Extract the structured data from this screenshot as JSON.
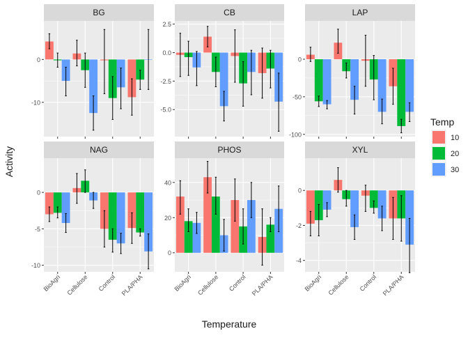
{
  "colors": {
    "10": "#F8766D",
    "20": "#00BA38",
    "30": "#619CFF",
    "panel_bg": "#EBEBEB",
    "strip_bg": "#D9D9D9",
    "grid": "#FFFFFF",
    "text": "#4D4D4D",
    "title_text": "#1A1A1A"
  },
  "chart_data": {
    "type": "bar",
    "facet_layout": "2 rows x 3 columns, free y scales",
    "categories": [
      "BioAgri",
      "Cellulose",
      "Control",
      "PLA/PHA"
    ],
    "xlabel": "Temperature",
    "ylabel": "Activity",
    "legend": {
      "title": "Temp",
      "position": "right",
      "entries": [
        "10",
        "20",
        "30"
      ]
    },
    "grid": true,
    "panels": [
      {
        "title": "BG",
        "ylim": [
          -18.0,
          9.0
        ],
        "yticks": [
          0,
          -10
        ],
        "ytick_labels": [
          "0",
          "-10"
        ],
        "series": [
          {
            "name": "10",
            "values": [
              4.2,
              1.4,
              -0.2,
              -8.8
            ],
            "err_low": [
              2.5,
              -1.5,
              -8.0,
              -13.0
            ],
            "err_high": [
              6.0,
              4.5,
              7.0,
              -4.5
            ]
          },
          {
            "name": "20",
            "values": [
              -0.2,
              -2.5,
              -9.0,
              -4.7
            ],
            "err_low": [
              -1.8,
              -6.5,
              -14.0,
              -7.0
            ],
            "err_high": [
              1.5,
              1.5,
              -4.0,
              -2.5
            ]
          },
          {
            "name": "30",
            "values": [
              -5.0,
              -12.5,
              -6.5,
              -0.1
            ],
            "err_low": [
              -8.5,
              -16.5,
              -11.5,
              -7.0
            ],
            "err_high": [
              -1.8,
              -8.5,
              -2.0,
              7.0
            ]
          }
        ]
      },
      {
        "title": "CB",
        "ylim": [
          -7.37,
          2.78
        ],
        "yticks": [
          2.5,
          0.0,
          -2.5,
          -5.0
        ],
        "ytick_labels": [
          "2.5",
          "0.0",
          "-2.5",
          "-5.0"
        ],
        "series": [
          {
            "name": "10",
            "values": [
              -0.2,
              1.4,
              -0.3,
              -1.8
            ],
            "err_low": [
              -2.1,
              0.5,
              -2.6,
              -4.0
            ],
            "err_high": [
              1.7,
              2.3,
              2.0,
              0.4
            ]
          },
          {
            "name": "20",
            "values": [
              -0.4,
              -1.7,
              -2.7,
              -1.4
            ],
            "err_low": [
              -2.0,
              -3.0,
              -4.7,
              -3.1
            ],
            "err_high": [
              1.0,
              -0.4,
              -0.8,
              0.2
            ]
          },
          {
            "name": "30",
            "values": [
              -1.3,
              -4.7,
              -1.7,
              -4.3
            ],
            "err_low": [
              -2.9,
              -6.0,
              -3.7,
              -6.9
            ],
            "err_high": [
              0.1,
              -3.4,
              0.2,
              -1.8
            ]
          }
        ]
      },
      {
        "title": "LAP",
        "ylim": [
          -103.0,
          51.0
        ],
        "yticks": [
          0,
          -50,
          -100
        ],
        "ytick_labels": [
          "0",
          "-50",
          "-100"
        ],
        "series": [
          {
            "name": "10",
            "values": [
              6.0,
              22.0,
              -2.0,
              -36.0
            ],
            "err_low": [
              -3.0,
              8.0,
              -36.0,
              -60.0
            ],
            "err_high": [
              16.0,
              40.0,
              32.0,
              -12.0
            ]
          },
          {
            "name": "20",
            "values": [
              -56.0,
              -16.0,
              -27.0,
              -89.0
            ],
            "err_low": [
              -63.0,
              -25.0,
              -54.0,
              -98.0
            ],
            "err_high": [
              -49.0,
              -5.0,
              5.0,
              -80.0
            ]
          },
          {
            "name": "30",
            "values": [
              -60.0,
              -54.0,
              -70.0,
              -70.0
            ],
            "err_low": [
              -66.0,
              -73.0,
              -86.0,
              -83.0
            ],
            "err_high": [
              -55.0,
              -36.0,
              -53.0,
              -58.0
            ]
          }
        ]
      },
      {
        "title": "NAG",
        "ylim": [
          -10.9,
          4.7
        ],
        "yticks": [
          0,
          -5,
          -10
        ],
        "ytick_labels": [
          "0",
          "-5",
          "-10"
        ],
        "series": [
          {
            "name": "10",
            "values": [
              -3.0,
              0.6,
              -5.0,
              -4.9
            ],
            "err_low": [
              -4.0,
              -1.5,
              -7.5,
              -7.0
            ],
            "err_high": [
              -2.0,
              2.6,
              -2.5,
              -2.8
            ]
          },
          {
            "name": "20",
            "values": [
              -2.8,
              1.6,
              -6.5,
              -5.5
            ],
            "err_low": [
              -3.5,
              0.0,
              -8.2,
              -6.0
            ],
            "err_high": [
              -2.0,
              3.1,
              -5.0,
              -5.0
            ]
          },
          {
            "name": "30",
            "values": [
              -4.2,
              -1.1,
              -7.0,
              -8.1
            ],
            "err_low": [
              -5.5,
              -2.2,
              -8.4,
              -10.5
            ],
            "err_high": [
              -2.9,
              0.0,
              -5.6,
              -5.7
            ]
          }
        ]
      },
      {
        "title": "PHOS",
        "ylim": [
          -10.8,
          53.8
        ],
        "yticks": [
          40,
          20,
          0
        ],
        "ytick_labels": [
          "40",
          "20",
          "0"
        ],
        "series": [
          {
            "name": "10",
            "values": [
              32.0,
              43.0,
              30.0,
              9.0
            ],
            "err_low": [
              22.0,
              34.0,
              18.0,
              -7.0
            ],
            "err_high": [
              41.0,
              52.0,
              42.0,
              25.0
            ]
          },
          {
            "name": "20",
            "values": [
              18.0,
              32.0,
              15.0,
              16.0
            ],
            "err_low": [
              12.0,
              22.0,
              5.0,
              12.0
            ],
            "err_high": [
              25.0,
              43.0,
              25.0,
              20.0
            ]
          },
          {
            "name": "30",
            "values": [
              17.0,
              10.0,
              30.0,
              25.0
            ],
            "err_low": [
              11.0,
              1.0,
              20.0,
              12.0
            ],
            "err_high": [
              23.0,
              19.0,
              40.0,
              38.0
            ]
          }
        ]
      },
      {
        "title": "XYL",
        "ylim": [
          -4.65,
          1.84
        ],
        "yticks": [
          0,
          -2,
          -4
        ],
        "ytick_labels": [
          "0",
          "-2",
          "-4"
        ],
        "series": [
          {
            "name": "10",
            "values": [
              -1.9,
              0.6,
              -0.3,
              -1.6
            ],
            "err_low": [
              -2.6,
              -0.1,
              -1.2,
              -2.8
            ],
            "err_high": [
              -1.2,
              1.3,
              0.3,
              -0.4
            ]
          },
          {
            "name": "20",
            "values": [
              -1.7,
              -0.5,
              -1.0,
              -1.6
            ],
            "err_low": [
              -2.6,
              -0.9,
              -1.3,
              -2.9
            ],
            "err_high": [
              -0.8,
              0.0,
              -0.6,
              -0.3
            ]
          },
          {
            "name": "30",
            "values": [
              -1.1,
              -2.1,
              -1.6,
              -3.1
            ],
            "err_low": [
              -1.5,
              -2.8,
              -2.3,
              -4.7
            ],
            "err_high": [
              -0.7,
              -1.4,
              -0.9,
              -1.6
            ]
          }
        ]
      }
    ]
  }
}
